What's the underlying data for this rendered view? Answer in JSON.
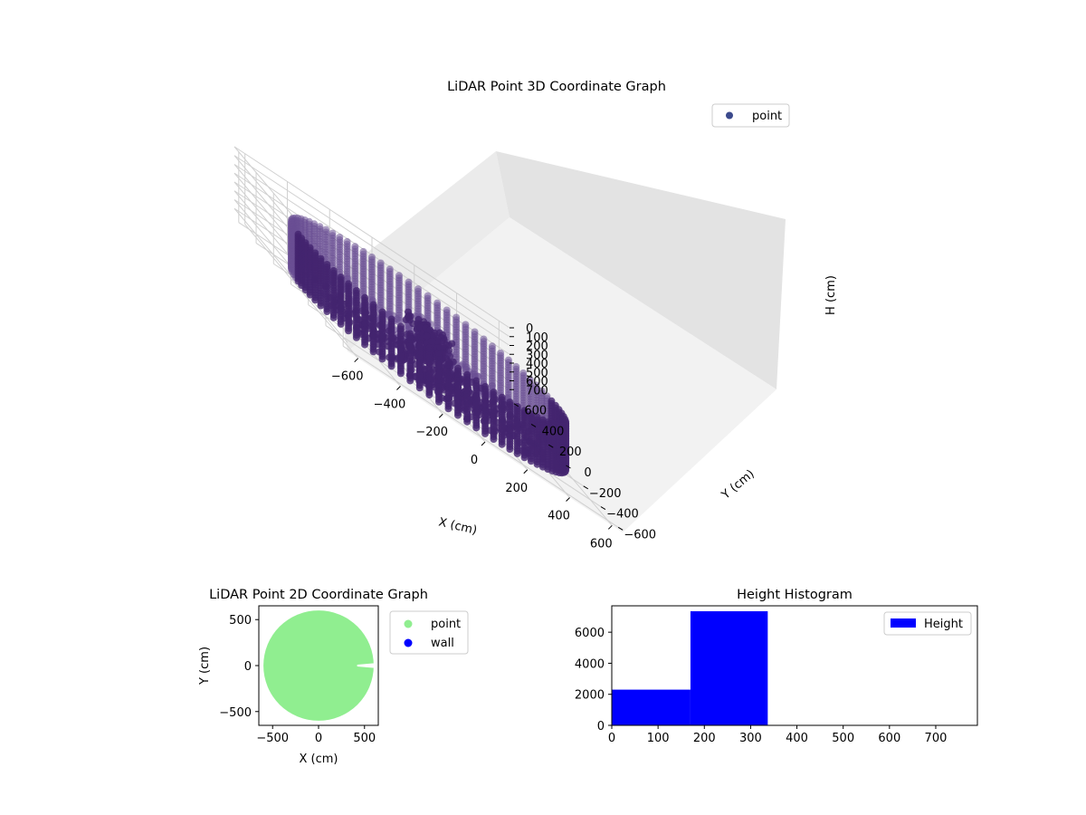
{
  "colors": {
    "point_3d": "#3b4a8c",
    "point_2d": "#90ee90",
    "wall_2d": "#0000ff",
    "histogram": "#0000ff"
  },
  "chart_data": [
    {
      "type": "scatter3d",
      "title": "LiDAR Point 3D Coordinate Graph",
      "xlabel": "X (cm)",
      "ylabel": "Y (cm)",
      "zlabel": "H (cm)",
      "xlim": [
        -650,
        650
      ],
      "ylim": [
        -650,
        650
      ],
      "zlim": [
        0,
        800
      ],
      "z_inverted": true,
      "xticks": [
        -600,
        -400,
        -200,
        0,
        200,
        400,
        600
      ],
      "yticks": [
        -600,
        -400,
        -200,
        0,
        200,
        400,
        600
      ],
      "zticks": [
        0,
        100,
        200,
        300,
        400,
        500,
        600,
        700
      ],
      "legend": [
        "point"
      ],
      "legend_position": "top-right",
      "grid": true,
      "series": [
        {
          "name": "point",
          "shape": "cylindrical wall ring",
          "radius_cm": 600,
          "height_range_cm": [
            200,
            750
          ],
          "note": "dense ring of points around origin with an inner cluster near the center"
        }
      ]
    },
    {
      "type": "scatter",
      "title": "LiDAR Point 2D Coordinate Graph",
      "xlabel": "X (cm)",
      "ylabel": "Y (cm)",
      "xlim": [
        -650,
        650
      ],
      "ylim": [
        -650,
        650
      ],
      "xticks": [
        -500,
        0,
        500
      ],
      "yticks": [
        -500,
        0,
        500
      ],
      "legend": [
        "point",
        "wall"
      ],
      "legend_position": "outside-right",
      "series": [
        {
          "name": "point",
          "shape": "filled disk",
          "radius_cm": 600,
          "gap": "narrow slit along +X near y=0 from x≈420 to 650"
        },
        {
          "name": "wall",
          "points": []
        }
      ]
    },
    {
      "type": "bar",
      "subtype": "histogram",
      "title": "Height Histogram",
      "xlabel": "",
      "ylabel": "",
      "xlim": [
        0,
        790
      ],
      "ylim": [
        0,
        7700
      ],
      "xticks": [
        0,
        100,
        200,
        300,
        400,
        500,
        600,
        700
      ],
      "yticks": [
        0,
        2000,
        4000,
        6000
      ],
      "bins": [
        [
          0,
          170
        ],
        [
          170,
          337
        ],
        [
          337,
          500
        ],
        [
          500,
          660
        ],
        [
          660,
          790
        ]
      ],
      "values": [
        2300,
        7350,
        0,
        0,
        0
      ],
      "legend": [
        "Height"
      ],
      "legend_position": "top-right"
    }
  ]
}
